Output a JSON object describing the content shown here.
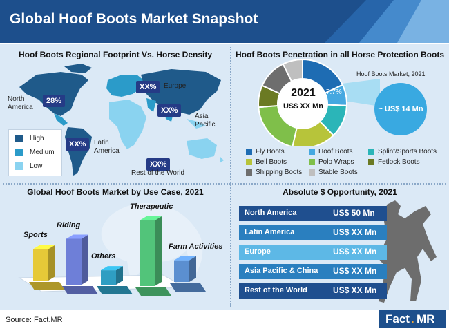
{
  "header": {
    "title": "Global Hoof Boots Market Snapshot"
  },
  "map_panel": {
    "title": "Hoof Boots Regional Footprint Vs. Horse Density",
    "badges": {
      "north_america": "28%",
      "europe": "XX%",
      "asia": "XX%",
      "latin_america": "XX%",
      "rest": "XX%"
    },
    "labels": {
      "north_america": "North America",
      "europe": "Europe",
      "asia_pacific": "Asia Pacific",
      "latin_america": "Latin America",
      "rest": "Rest of the World"
    },
    "legend": [
      "High",
      "Medium",
      "Low"
    ],
    "colors": {
      "high": "#1f5a8a",
      "medium": "#2b9bc9",
      "low": "#8ad3f0"
    }
  },
  "penetration_panel": {
    "title": "Hoof Boots Penetration in all Horse Protection Boots",
    "center_year": "2021",
    "center_value": "US$ XX Mn",
    "slice_label": "7.7%",
    "callout_title": "Hoof Boots Market, 2021",
    "callout_value": "~ US$ 14 Mn"
  },
  "usecase_panel": {
    "title": "Global Hoof Boots Market by Use Case, 2021"
  },
  "opportunity_panel": {
    "title": "Absolute $ Opportunity, 2021"
  },
  "footer": {
    "source": "Source: Fact.MR",
    "logo_fact": "Fact",
    "logo_dot": ".",
    "logo_mr": "MR"
  },
  "chart_data": [
    {
      "type": "pie",
      "title": "Hoof Boots Penetration in all Horse Protection Boots",
      "categories": [
        "Fly Boots",
        "Hoof Boots",
        "Splint/Sports Boots",
        "Bell Boots",
        "Polo Wraps",
        "Fetlock Boots",
        "Shipping Boots",
        "Stable Boots"
      ],
      "values": [
        18,
        7.7,
        12,
        16,
        20,
        8,
        11,
        7.3
      ],
      "colors": [
        "#1e6cb3",
        "#45a8e0",
        "#2bb5b8",
        "#b7c43a",
        "#7fbf4a",
        "#6b7a23",
        "#6e6e6e",
        "#bfbfbf"
      ],
      "annotations": [
        "7.7%"
      ]
    },
    {
      "type": "bar",
      "title": "Global Hoof Boots Market by Use Case, 2021",
      "categories": [
        "Sports",
        "Riding",
        "Others",
        "Therapeutic",
        "Farm Activities"
      ],
      "values": [
        48,
        70,
        22,
        100,
        33
      ],
      "colors": [
        "#e6c938",
        "#6e7fd8",
        "#2f9ec2",
        "#52c47a",
        "#5b8fd0"
      ]
    },
    {
      "type": "bar",
      "title": "Absolute $ Opportunity, 2021",
      "categories": [
        "North America",
        "Latin America",
        "Europe",
        "Asia Pacific & China",
        "Rest of the World"
      ],
      "value_labels": [
        "US$ 50 Mn",
        "US$ XX Mn",
        "US$ XX Mn",
        "US$ XX Mn",
        "US$ XX Mn"
      ],
      "colors": [
        "#1f4f8f",
        "#2a7fbf",
        "#5db8e6",
        "#2a7fbf",
        "#1f4f8f"
      ]
    }
  ]
}
